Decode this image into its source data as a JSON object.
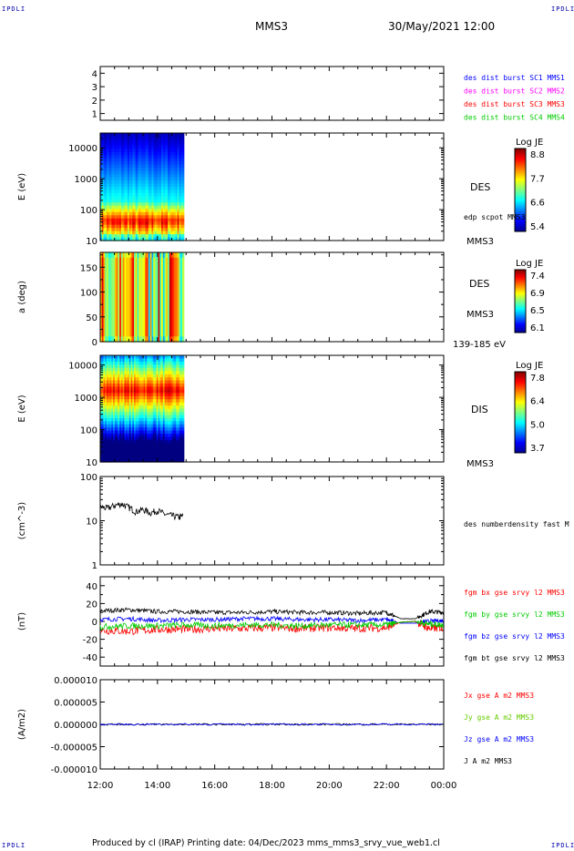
{
  "header": {
    "corner_label": "IPDLI",
    "spacecraft": "MMS3",
    "datetime": "30/May/2021 12:00"
  },
  "footer": {
    "text": "Produced by cl (IRAP)   Printing date: 04/Dec/2023   mms_mms3_srvy_vue_web1.cl"
  },
  "chart_data": [
    {
      "type": "line",
      "panel": "dist-burst-availability",
      "ylabel": "",
      "yticks": [
        "4",
        "3",
        "2",
        "1"
      ],
      "ylim": [
        0.5,
        4.5
      ],
      "legend": [
        {
          "name": "des dist burst SC1 MMS1",
          "color": "#0000ff"
        },
        {
          "name": "des dist burst SC2 MMS2",
          "color": "#ff00ff"
        },
        {
          "name": "des dist burst SC3 MMS3",
          "color": "#ff0000"
        },
        {
          "name": "des dist burst SC4 MMS4",
          "color": "#00cc00"
        }
      ]
    },
    {
      "type": "heatmap",
      "panel": "des-energy-spectrogram",
      "ylabel": "E (eV)",
      "yscale": "log",
      "ylim": [
        10,
        30000
      ],
      "yticks": [
        "10000",
        "1000",
        "100",
        "10"
      ],
      "data_time_range": [
        "12:00",
        "14:55"
      ],
      "colorbar": {
        "title": "Log JE",
        "ticks": [
          "8.8",
          "7.7",
          "6.6",
          "5.4"
        ],
        "range": [
          5.4,
          8.8
        ]
      },
      "labels": [
        "DES",
        "edp scpot MMS3",
        "MMS3"
      ]
    },
    {
      "type": "heatmap",
      "panel": "des-pitch-angle",
      "ylabel": "a (deg)",
      "ylim": [
        0,
        180
      ],
      "yticks": [
        "150",
        "100",
        "50",
        "0"
      ],
      "data_time_range": [
        "12:00",
        "14:55"
      ],
      "colorbar": {
        "title": "Log JE",
        "ticks": [
          "7.4",
          "6.9",
          "6.5",
          "6.1"
        ],
        "range": [
          6.1,
          7.4
        ]
      },
      "labels": [
        "DES",
        "MMS3",
        "139-185 eV"
      ]
    },
    {
      "type": "heatmap",
      "panel": "dis-energy-spectrogram",
      "ylabel": "E (eV)",
      "yscale": "log",
      "ylim": [
        10,
        20000
      ],
      "yticks": [
        "10000",
        "1000",
        "100",
        "10"
      ],
      "data_time_range": [
        "12:00",
        "14:55"
      ],
      "colorbar": {
        "title": "Log JE",
        "ticks": [
          "7.8",
          "6.4",
          "5.0",
          "3.7"
        ],
        "range": [
          3.7,
          7.8
        ]
      },
      "labels": [
        "DIS",
        "MMS3"
      ]
    },
    {
      "type": "line",
      "panel": "density",
      "ylabel": "(cm^-3)",
      "yscale": "log",
      "ylim": [
        1,
        100
      ],
      "yticks": [
        "100",
        "10",
        "1"
      ],
      "series": [
        {
          "name": "des numberdensity fast M",
          "color": "#000000",
          "x": [
            12.0,
            12.25,
            12.5,
            12.75,
            13.0,
            13.25,
            13.5,
            13.75,
            14.0,
            14.25,
            14.5,
            14.75,
            14.9
          ],
          "values": [
            21,
            19,
            22,
            24,
            20,
            16,
            18,
            15,
            17,
            14,
            13,
            12,
            13
          ]
        }
      ]
    },
    {
      "type": "line",
      "panel": "fgm-field",
      "ylabel": "(nT)",
      "ylim": [
        -50,
        50
      ],
      "yticks": [
        "40",
        "20",
        "0",
        "-20",
        "-40"
      ],
      "series": [
        {
          "name": "fgm bx gse srvy l2 MMS3",
          "color": "#ff0000",
          "x": [
            12,
            13,
            14,
            15,
            16,
            17,
            18,
            19,
            20,
            21,
            22,
            22.5,
            23,
            23.5,
            24
          ],
          "values": [
            -10,
            -11,
            -9,
            -9,
            -8,
            -8,
            -7,
            -8,
            -7,
            -8,
            -7,
            -1,
            0,
            -8,
            -7
          ]
        },
        {
          "name": "fgm by gse srvy l2 MMS3",
          "color": "#00cc00",
          "x": [
            12,
            13,
            14,
            15,
            16,
            17,
            18,
            19,
            20,
            21,
            22,
            22.5,
            23,
            23.5,
            24
          ],
          "values": [
            -6,
            -5,
            -5,
            -4,
            -5,
            -4,
            -4,
            -5,
            -4,
            -4,
            -4,
            -1,
            0,
            -3,
            -4
          ]
        },
        {
          "name": "fgm bz gse srvy l2 MMS3",
          "color": "#0000ff",
          "x": [
            12,
            13,
            14,
            15,
            16,
            17,
            18,
            19,
            20,
            21,
            22,
            22.5,
            23,
            23.5,
            24
          ],
          "values": [
            2,
            3,
            1,
            2,
            2,
            3,
            3,
            2,
            2,
            1,
            2,
            -2,
            -2,
            0,
            1
          ]
        },
        {
          "name": "fgm bt gse srvy l2 MMS3",
          "color": "#000000",
          "x": [
            12,
            13,
            14,
            15,
            16,
            17,
            18,
            19,
            20,
            21,
            22,
            22.5,
            23,
            23.5,
            24
          ],
          "values": [
            12,
            13,
            11,
            11,
            10,
            10,
            11,
            10,
            10,
            9,
            10,
            3,
            3,
            11,
            10
          ]
        }
      ]
    },
    {
      "type": "line",
      "panel": "current-density",
      "ylabel": "(A/m2)",
      "ylim": [
        -1e-05,
        1e-05
      ],
      "yticks": [
        "0.000010",
        "0.000005",
        "0.000000",
        "-0.000005",
        "-0.000010"
      ],
      "series": [
        {
          "name": "Jx gse A m2 MMS3",
          "color": "#ff0000"
        },
        {
          "name": "Jy gse A m2 MMS3",
          "color": "#66cc00"
        },
        {
          "name": "Jz gse A m2 MMS3",
          "color": "#0000ff"
        },
        {
          "name": "J A m2 MMS3",
          "color": "#000000"
        }
      ]
    }
  ],
  "time_axis": {
    "ticks": [
      "12:00",
      "14:00",
      "16:00",
      "18:00",
      "20:00",
      "22:00",
      "00:00"
    ],
    "range_hours": [
      12,
      24
    ]
  }
}
